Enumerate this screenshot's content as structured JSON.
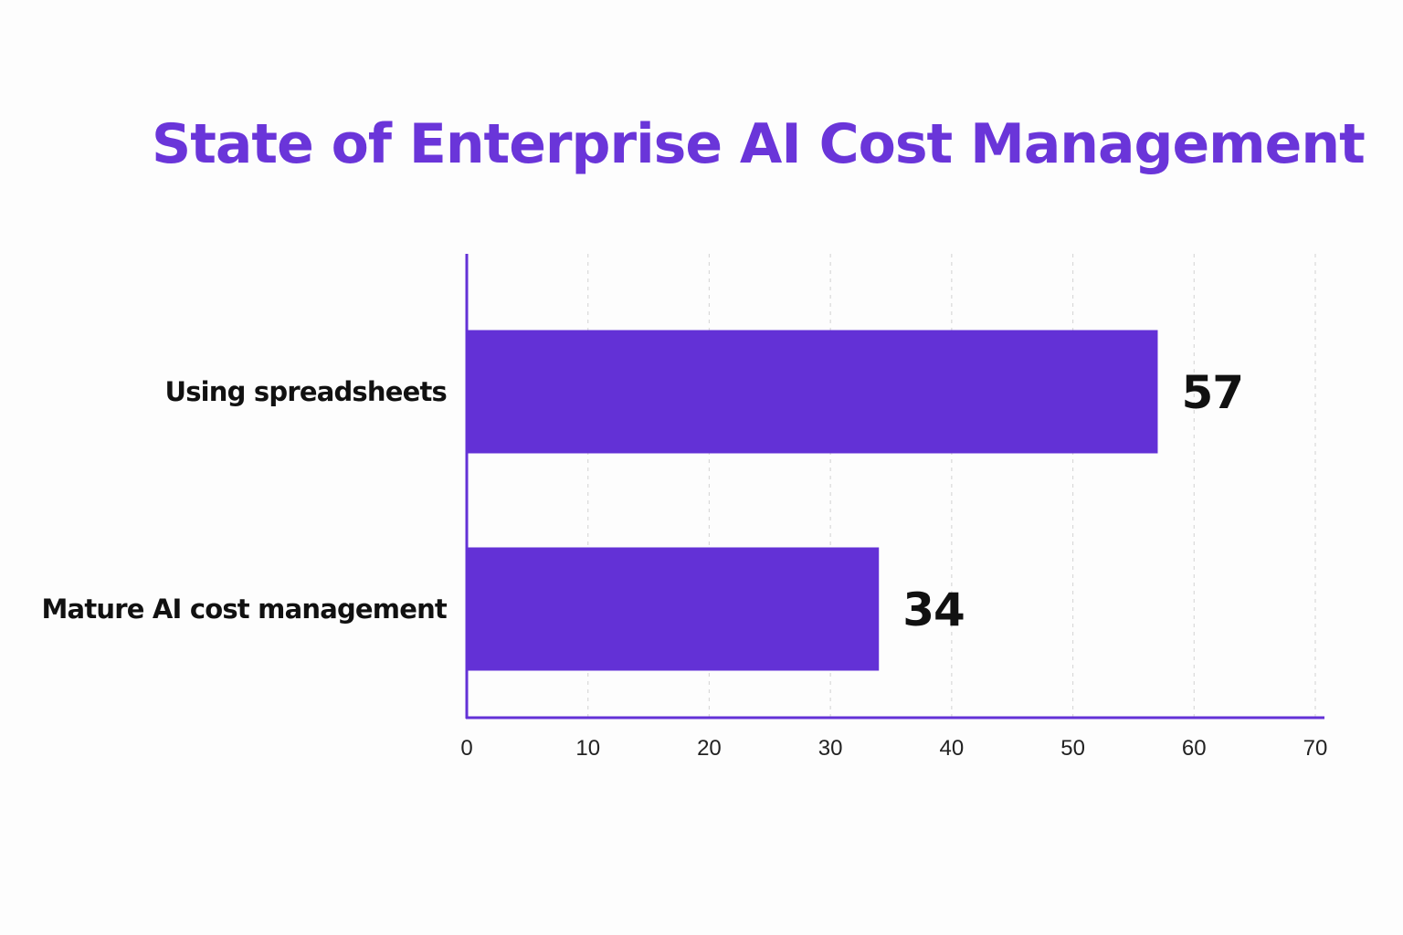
{
  "chart_data": {
    "type": "bar",
    "orientation": "horizontal",
    "title": "State of Enterprise AI Cost Management",
    "categories": [
      "Using spreadsheets",
      "Mature AI cost management"
    ],
    "values": [
      57,
      34
    ],
    "value_labels": [
      "57",
      "34"
    ],
    "xlim": [
      0,
      70
    ],
    "x_ticks": [
      0,
      10,
      20,
      30,
      40,
      50,
      60,
      70
    ],
    "x_tick_labels": [
      "0",
      "10",
      "20",
      "30",
      "40",
      "50",
      "60",
      "70"
    ],
    "xlabel": "",
    "ylabel": "",
    "grid": "vertical dashed",
    "legend": "none"
  },
  "colors": {
    "title": "#6a35d9",
    "bar": "#6331d6",
    "axis": "#6331d6",
    "text": "#111111",
    "grid": "#d9d9d9"
  }
}
